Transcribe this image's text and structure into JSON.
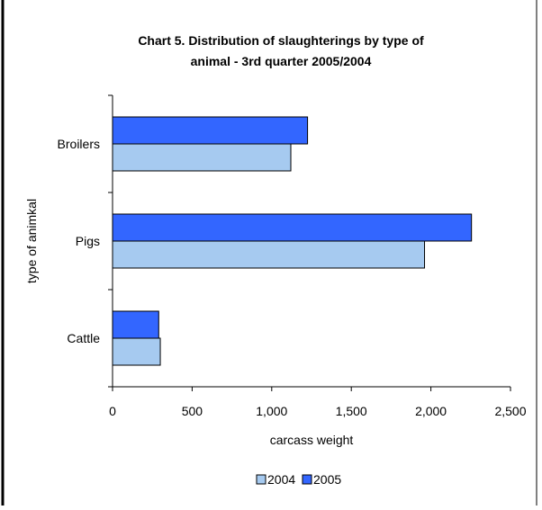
{
  "chart_data": {
    "type": "bar",
    "orientation": "horizontal",
    "title_lines": [
      "Chart 5.  Distribution of slaughterings by type of",
      "animal - 3rd quarter 2005/2004"
    ],
    "xlabel": "carcass weight",
    "ylabel": "type of animkal",
    "categories": [
      "Broilers",
      "Pigs",
      "Cattle"
    ],
    "series": [
      {
        "name": "2004",
        "color": "#a6caf0",
        "values": [
          1120,
          1960,
          300
        ]
      },
      {
        "name": "2005",
        "color": "#3366ff",
        "values": [
          1225,
          2255,
          290
        ]
      }
    ],
    "xlim": [
      0,
      2500
    ],
    "xticks": [
      0,
      500,
      1000,
      1500,
      2000,
      2500
    ],
    "xtick_labels": [
      "0",
      "500",
      "1,000",
      "1,500",
      "2,000",
      "2,500"
    ],
    "legend_position": "bottom",
    "grid": false
  }
}
